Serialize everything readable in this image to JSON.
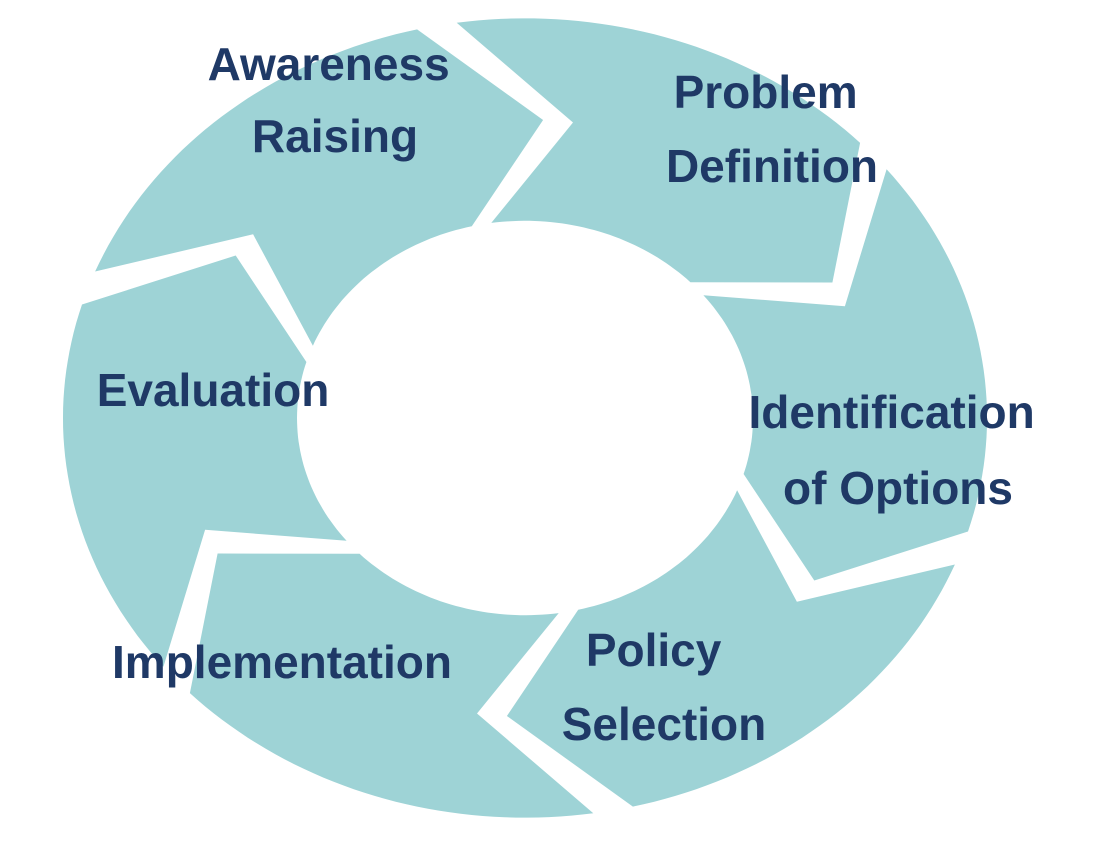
{
  "colors": {
    "segment": "#9ed3d6",
    "label": "#1f3966",
    "background": "#ffffff"
  },
  "stages": [
    {
      "id": "awareness-raising",
      "lines": [
        "Awareness",
        "Raising"
      ]
    },
    {
      "id": "problem-definition",
      "lines": [
        "Problem",
        "Definition"
      ]
    },
    {
      "id": "identification-of-options",
      "lines": [
        "Identification",
        "of Options"
      ]
    },
    {
      "id": "policy-selection",
      "lines": [
        "Policy",
        "Selection"
      ]
    },
    {
      "id": "implementation",
      "lines": [
        "Implementation"
      ]
    },
    {
      "id": "evaluation",
      "lines": [
        "Evaluation"
      ]
    }
  ]
}
